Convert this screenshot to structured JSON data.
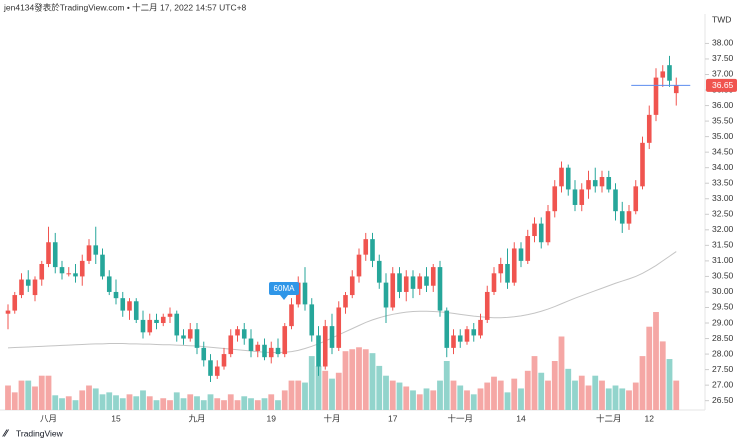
{
  "chart_data": {
    "type": "candlestick",
    "header": "jen4134發表於TradingView.com • 十二月 17, 2022 14:57 UTC+8",
    "currency": "TWD",
    "footer": "TradingView",
    "annotation": "60MA",
    "categories": [
      null,
      null,
      null,
      null,
      null,
      null,
      "八月",
      null,
      null,
      null,
      null,
      null,
      null,
      null,
      null,
      null,
      "15",
      null,
      null,
      null,
      null,
      null,
      null,
      null,
      null,
      null,
      null,
      null,
      "九月",
      null,
      null,
      null,
      null,
      null,
      null,
      null,
      null,
      null,
      null,
      "19",
      null,
      null,
      null,
      null,
      null,
      null,
      null,
      null,
      "十月",
      null,
      null,
      null,
      null,
      null,
      null,
      null,
      null,
      "17",
      null,
      null,
      null,
      null,
      null,
      null,
      null,
      null,
      null,
      "十一月",
      null,
      null,
      null,
      null,
      null,
      null,
      null,
      null,
      "14",
      null,
      null,
      null,
      null,
      null,
      null,
      null,
      null,
      null,
      null,
      null,
      null,
      "十二月",
      null,
      null,
      null,
      null,
      null,
      "12",
      null,
      null,
      null,
      null
    ],
    "open": [
      29.3,
      29.4,
      29.9,
      30.4,
      29.9,
      30.4,
      30.9,
      31.6,
      30.8,
      30.6,
      30.6,
      30.5,
      31.0,
      31.5,
      31.2,
      30.5,
      30.0,
      29.8,
      29.4,
      29.7,
      29.1,
      28.7,
      29.1,
      29.0,
      29.2,
      29.3,
      28.6,
      28.5,
      28.8,
      28.2,
      27.8,
      27.3,
      27.6,
      28.0,
      28.6,
      28.8,
      28.5,
      28.1,
      28.3,
      27.9,
      28.2,
      28.0,
      28.9,
      29.6,
      30.3,
      29.6,
      28.6,
      27.6,
      28.9,
      28.2,
      29.5,
      29.9,
      30.5,
      31.2,
      31.7,
      31.0,
      30.3,
      29.5,
      30.6,
      30.0,
      30.5,
      30.1,
      30.5,
      30.2,
      30.8,
      29.4,
      28.2,
      28.6,
      28.4,
      28.8,
      28.6,
      29.1,
      30.0,
      30.6,
      30.9,
      30.3,
      31.4,
      31.0,
      31.8,
      32.2,
      31.6,
      32.6,
      33.4,
      34.0,
      33.3,
      32.8,
      33.3,
      33.6,
      33.4,
      33.7,
      33.3,
      32.6,
      32.2,
      32.6,
      33.4,
      34.8,
      35.7,
      36.9,
      37.3,
      36.4
    ],
    "high": [
      29.6,
      30.0,
      30.6,
      30.7,
      30.5,
      31.0,
      32.1,
      31.9,
      31.0,
      30.8,
      30.9,
      31.2,
      31.7,
      32.1,
      31.4,
      30.7,
      30.4,
      30.0,
      29.8,
      29.8,
      29.4,
      29.3,
      29.3,
      29.3,
      29.5,
      29.4,
      28.8,
      29.0,
      29.0,
      28.4,
      28.0,
      27.8,
      28.2,
      28.8,
      28.9,
      29.0,
      28.8,
      28.4,
      28.5,
      28.4,
      28.5,
      29.0,
      29.8,
      30.5,
      30.8,
      29.8,
      28.9,
      29.1,
      29.3,
      29.7,
      30.0,
      30.7,
      31.4,
      31.9,
      31.9,
      31.2,
      30.6,
      30.8,
      30.8,
      30.7,
      30.7,
      30.6,
      30.8,
      30.9,
      31.0,
      29.5,
      28.8,
      28.8,
      28.9,
      29.0,
      29.3,
      30.2,
      30.8,
      31.1,
      31.4,
      31.6,
      31.6,
      32.0,
      32.4,
      32.4,
      32.8,
      33.6,
      34.2,
      34.1,
      33.6,
      33.5,
      33.9,
      34.0,
      33.9,
      33.9,
      33.5,
      32.9,
      32.8,
      33.6,
      35.0,
      36.0,
      37.2,
      37.3,
      37.6,
      36.9
    ],
    "low": [
      28.8,
      29.3,
      29.8,
      30.0,
      29.7,
      30.2,
      30.8,
      30.6,
      30.4,
      30.5,
      30.3,
      30.2,
      30.9,
      30.9,
      30.4,
      29.9,
      29.6,
      29.2,
      29.1,
      29.0,
      28.5,
      28.6,
      28.8,
      28.9,
      29.0,
      28.4,
      28.3,
      28.4,
      28.0,
      27.6,
      27.1,
      27.2,
      27.5,
      27.9,
      28.4,
      28.3,
      27.9,
      27.9,
      27.8,
      27.7,
      27.9,
      27.9,
      28.8,
      29.5,
      29.4,
      28.4,
      27.3,
      27.5,
      28.0,
      28.1,
      29.3,
      29.8,
      30.3,
      31.0,
      30.8,
      30.1,
      29.0,
      29.4,
      29.8,
      29.7,
      29.8,
      29.9,
      30.0,
      30.0,
      29.2,
      27.9,
      28.0,
      28.2,
      28.3,
      28.4,
      28.5,
      29.0,
      29.9,
      30.3,
      30.1,
      30.2,
      30.8,
      30.9,
      31.6,
      31.4,
      31.5,
      32.4,
      33.2,
      33.1,
      32.6,
      32.6,
      33.0,
      33.2,
      33.2,
      33.2,
      32.3,
      31.9,
      32.0,
      32.5,
      33.3,
      34.6,
      35.5,
      36.6,
      36.6,
      36.0
    ],
    "close": [
      29.4,
      29.9,
      30.4,
      30.2,
      30.4,
      30.9,
      31.6,
      30.8,
      30.6,
      30.6,
      30.5,
      31.0,
      31.5,
      31.2,
      30.5,
      30.0,
      29.8,
      29.4,
      29.7,
      29.1,
      28.7,
      29.1,
      29.0,
      29.2,
      29.3,
      28.6,
      28.5,
      28.8,
      28.2,
      27.8,
      27.3,
      27.6,
      28.0,
      28.6,
      28.8,
      28.5,
      28.1,
      28.3,
      27.9,
      28.2,
      28.0,
      28.9,
      29.6,
      30.3,
      29.6,
      28.6,
      27.6,
      28.9,
      28.2,
      29.5,
      29.9,
      30.5,
      31.2,
      31.7,
      31.0,
      30.3,
      29.5,
      30.6,
      30.0,
      30.5,
      30.1,
      30.5,
      30.2,
      30.8,
      29.4,
      28.2,
      28.6,
      28.4,
      28.8,
      28.6,
      29.1,
      30.0,
      30.6,
      30.9,
      30.3,
      31.4,
      31.0,
      31.8,
      32.2,
      31.6,
      32.6,
      33.4,
      34.0,
      33.3,
      32.8,
      33.3,
      33.6,
      33.4,
      33.7,
      33.3,
      32.6,
      32.2,
      32.6,
      33.4,
      34.8,
      35.7,
      36.9,
      37.1,
      36.8,
      36.65
    ],
    "volume": [
      25,
      18,
      30,
      30,
      24,
      35,
      35,
      15,
      12,
      14,
      10,
      20,
      25,
      22,
      16,
      18,
      15,
      12,
      16,
      14,
      20,
      14,
      10,
      12,
      10,
      18,
      12,
      16,
      14,
      10,
      16,
      12,
      10,
      16,
      10,
      14,
      12,
      10,
      12,
      16,
      10,
      20,
      30,
      30,
      28,
      55,
      45,
      40,
      32,
      38,
      60,
      62,
      64,
      62,
      58,
      45,
      35,
      30,
      28,
      24,
      20,
      16,
      22,
      20,
      30,
      50,
      30,
      25,
      20,
      16,
      22,
      28,
      34,
      30,
      18,
      32,
      22,
      40,
      55,
      38,
      30,
      50,
      75,
      42,
      30,
      35,
      25,
      35,
      30,
      22,
      25,
      22,
      20,
      28,
      55,
      85,
      100,
      70,
      52,
      30
    ],
    "ma": [
      28.2,
      28.21,
      28.22,
      28.23,
      28.24,
      28.25,
      28.26,
      28.27,
      28.28,
      28.29,
      28.3,
      28.31,
      28.32,
      28.33,
      28.33,
      28.34,
      28.34,
      28.34,
      28.33,
      28.33,
      28.32,
      28.32,
      28.31,
      28.3,
      28.3,
      28.29,
      28.28,
      28.27,
      28.26,
      28.24,
      28.22,
      28.2,
      28.18,
      28.16,
      28.14,
      28.12,
      28.1,
      28.08,
      28.06,
      28.05,
      28.05,
      28.06,
      28.08,
      28.12,
      28.18,
      28.25,
      28.33,
      28.42,
      28.52,
      28.62,
      28.72,
      28.82,
      28.92,
      29.02,
      29.1,
      29.17,
      29.23,
      29.28,
      29.32,
      29.35,
      29.37,
      29.38,
      29.38,
      29.37,
      29.36,
      29.34,
      29.31,
      29.28,
      29.25,
      29.22,
      29.2,
      29.18,
      29.17,
      29.17,
      29.18,
      29.2,
      29.23,
      29.27,
      29.32,
      29.38,
      29.45,
      29.53,
      29.62,
      29.71,
      29.8,
      29.88,
      29.96,
      30.04,
      30.12,
      30.2,
      30.28,
      30.35,
      30.42,
      30.5,
      30.6,
      30.72,
      30.85,
      31.0,
      31.15,
      31.3
    ],
    "last_price": 36.65,
    "up_color": "#f0544f",
    "down_color": "#26a69a",
    "volume_up_color": "#f5a7a5",
    "volume_down_color": "#92d4cc",
    "ma_color": "#c4c4c4",
    "price_line_color": "#5b8def",
    "annotation_color": "#2f96e8",
    "ylim": [
      26.2,
      38.4
    ],
    "yticks": [
      {
        "value": 26.5,
        "label": "26.50"
      },
      {
        "value": 27,
        "label": "27.00"
      },
      {
        "value": 27.5,
        "label": "27.50"
      },
      {
        "value": 28,
        "label": "28.00"
      },
      {
        "value": 28.5,
        "label": "28.50"
      },
      {
        "value": 29,
        "label": "29.00"
      },
      {
        "value": 29.5,
        "label": "29.50"
      },
      {
        "value": 30,
        "label": "30.00"
      },
      {
        "value": 30.5,
        "label": "30.50"
      },
      {
        "value": 31,
        "label": "31.00"
      },
      {
        "value": 31.5,
        "label": "31.50"
      },
      {
        "value": 32,
        "label": "32.00"
      },
      {
        "value": 32.5,
        "label": "32.50"
      },
      {
        "value": 33,
        "label": "33.00"
      },
      {
        "value": 33.5,
        "label": "33.50"
      },
      {
        "value": 34,
        "label": "34.00"
      },
      {
        "value": 34.5,
        "label": "34.50"
      },
      {
        "value": 35,
        "label": "35.00"
      },
      {
        "value": 35.5,
        "label": "35.50"
      },
      {
        "value": 36,
        "label": "36.00"
      },
      {
        "value": 36.5,
        "label": "36.50"
      },
      {
        "value": 37,
        "label": "37.00"
      },
      {
        "value": 37.5,
        "label": "37.50"
      },
      {
        "value": 38,
        "label": "38.00"
      }
    ]
  }
}
